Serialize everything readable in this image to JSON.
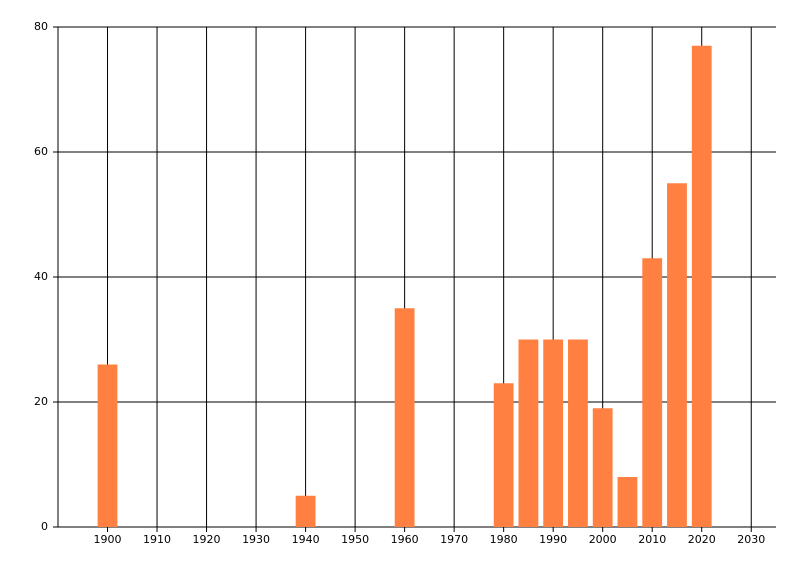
{
  "chart_data": {
    "type": "bar",
    "x": [
      1900,
      1940,
      1960,
      1980,
      1985,
      1990,
      1995,
      2000,
      2005,
      2010,
      2015,
      2020
    ],
    "values": [
      26,
      5,
      35,
      23,
      30,
      30,
      30,
      19,
      8,
      43,
      55,
      77
    ],
    "color": "#ff8040",
    "xlim": [
      1890,
      2035
    ],
    "xticks": [
      1900,
      1910,
      1920,
      1930,
      1940,
      1950,
      1960,
      1970,
      1980,
      1990,
      2000,
      2010,
      2020,
      2030
    ],
    "ylim": [
      0,
      80
    ],
    "yticks": [
      0,
      20,
      40,
      60,
      80
    ],
    "grid": true
  }
}
